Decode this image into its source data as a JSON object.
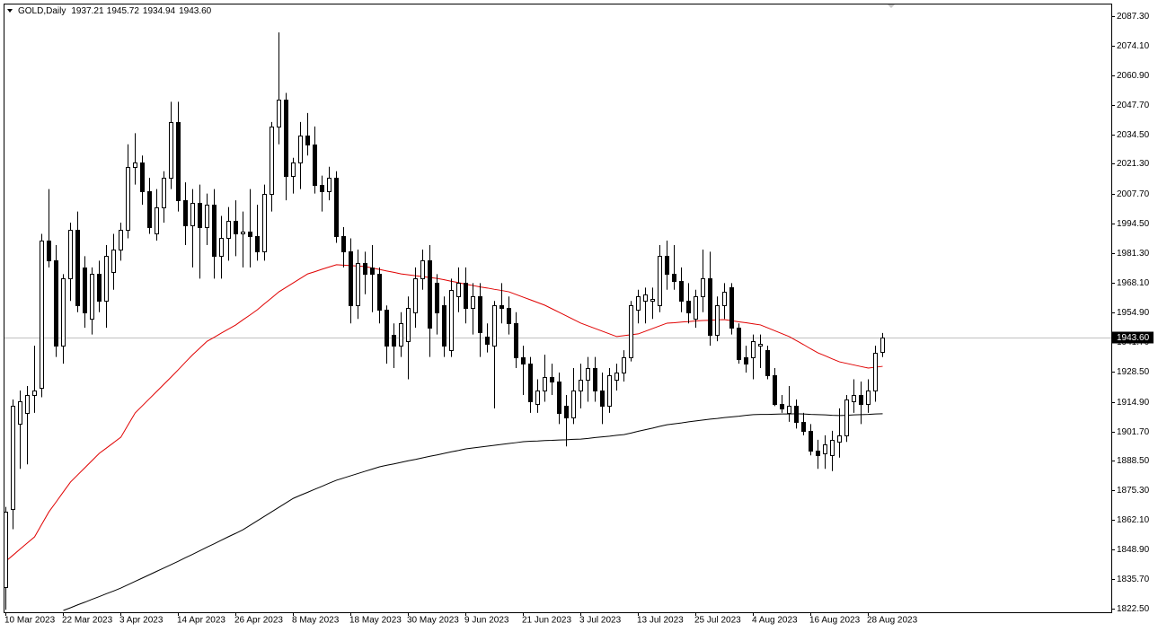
{
  "chart_data": {
    "type": "candlestick",
    "title": "GOLD,Daily",
    "ohlc_labels": [
      "1937.21",
      "1945.72",
      "1934.94",
      "1943.60"
    ],
    "categories": [
      "10 Mar 2023",
      null,
      null,
      null,
      null,
      null,
      null,
      null,
      "22 Mar 2023",
      null,
      null,
      null,
      null,
      null,
      null,
      null,
      "3 Apr 2023",
      null,
      null,
      null,
      null,
      null,
      null,
      null,
      "14 Apr 2023",
      null,
      null,
      null,
      null,
      null,
      null,
      null,
      "26 Apr 2023",
      null,
      null,
      null,
      null,
      null,
      null,
      null,
      "8 May 2023",
      null,
      null,
      null,
      null,
      null,
      null,
      null,
      "18 May 2023",
      null,
      null,
      null,
      null,
      null,
      null,
      null,
      "30 May 2023",
      null,
      null,
      null,
      null,
      null,
      null,
      null,
      "9 Jun 2023",
      null,
      null,
      null,
      null,
      null,
      null,
      null,
      "21 Jun 2023",
      null,
      null,
      null,
      null,
      null,
      null,
      null,
      "3 Jul 2023",
      null,
      null,
      null,
      null,
      null,
      null,
      null,
      "13 Jul 2023",
      null,
      null,
      null,
      null,
      null,
      null,
      null,
      "25 Jul 2023",
      null,
      null,
      null,
      null,
      null,
      null,
      null,
      "4 Aug 2023",
      null,
      null,
      null,
      null,
      null,
      null,
      null,
      "16 Aug 2023",
      null,
      null,
      null,
      null,
      null,
      null,
      null,
      "28 Aug 2023",
      null,
      null
    ],
    "open": [
      1832,
      1867,
      1905,
      1910,
      1918,
      1921,
      1987,
      1978,
      1940,
      1970,
      1992,
      1975,
      1952,
      1972,
      1960,
      1973,
      1983,
      1992,
      2020,
      2022,
      2009,
      1990,
      2002,
      2015,
      2040,
      2005,
      1994,
      2004,
      1993,
      2003,
      1980,
      1988,
      1996,
      1990,
      1991,
      1989,
      1982,
      2008,
      2038,
      2050,
      2016,
      2022,
      2034,
      2030,
      2012,
      2009,
      2015,
      1989,
      1982,
      1958,
      1977,
      1975,
      1972,
      1956,
      1945,
      1940,
      1942,
      1955,
      1970,
      1978,
      1968,
      1958,
      1938,
      1962,
      1968,
      1957,
      1962,
      1944,
      1940,
      1958,
      1957,
      1950,
      1935,
      1932,
      1914,
      1920,
      1926,
      1924,
      1913,
      1908,
      1920,
      1925,
      1930,
      1920,
      1913,
      1925,
      1928,
      1935,
      1956,
      1960,
      1960,
      1958,
      1980,
      1972,
      1969,
      1960,
      1952,
      1962,
      1970,
      1945,
      1958,
      1966,
      1948,
      1935,
      1935,
      1940,
      1938,
      1927,
      1914,
      1910,
      1913,
      1906,
      1902,
      1893,
      1892,
      1891,
      1897,
      1900,
      1915,
      1918,
      1914,
      1920,
      1937.21
    ],
    "high": [
      1868,
      1916,
      1920,
      1922,
      1940,
      1990,
      2010,
      1985,
      1972,
      1995,
      2000,
      1980,
      1975,
      1978,
      1985,
      1990,
      1995,
      2030,
      2035,
      2025,
      2015,
      2010,
      2018,
      2049,
      2049,
      2013,
      2010,
      2012,
      2008,
      2010,
      1998,
      2002,
      2005,
      2000,
      2010,
      2003,
      2012,
      2040,
      2080,
      2053,
      2024,
      2040,
      2044,
      2038,
      2016,
      2020,
      2018,
      1993,
      1988,
      1983,
      1982,
      1985,
      1975,
      1958,
      1950,
      1955,
      1962,
      1975,
      1983,
      1985,
      1972,
      1962,
      1970,
      1975,
      1975,
      1968,
      1968,
      1950,
      1960,
      1968,
      1962,
      1955,
      1940,
      1935,
      1925,
      1936,
      1932,
      1928,
      1918,
      1930,
      1932,
      1935,
      1935,
      1928,
      1930,
      1932,
      1938,
      1960,
      1965,
      1966,
      1966,
      1985,
      1987,
      1985,
      1975,
      1968,
      1965,
      1983,
      1982,
      1962,
      1968,
      1968,
      1950,
      1940,
      1945,
      1945,
      1940,
      1930,
      1918,
      1922,
      1916,
      1910,
      1905,
      1898,
      1900,
      1902,
      1912,
      1918,
      1925,
      1924,
      1925,
      1940,
      1945.72
    ],
    "low": [
      1822,
      1858,
      1885,
      1887,
      1910,
      1917,
      1975,
      1935,
      1932,
      1960,
      1955,
      1948,
      1945,
      1955,
      1948,
      1965,
      1978,
      1988,
      2012,
      2003,
      1990,
      1987,
      1995,
      2010,
      2000,
      1985,
      1975,
      1970,
      1985,
      1970,
      1970,
      1978,
      1980,
      1975,
      1975,
      1978,
      1978,
      2000,
      2030,
      2005,
      2008,
      2010,
      2025,
      2008,
      2000,
      2005,
      1986,
      1975,
      1950,
      1952,
      1963,
      1955,
      1950,
      1932,
      1930,
      1935,
      1925,
      1948,
      1965,
      1935,
      1945,
      1935,
      1935,
      1955,
      1950,
      1945,
      1935,
      1937,
      1912,
      1950,
      1945,
      1930,
      1918,
      1910,
      1910,
      1915,
      1918,
      1905,
      1895,
      1905,
      1912,
      1915,
      1915,
      1905,
      1910,
      1920,
      1924,
      1933,
      1950,
      1950,
      1952,
      1955,
      1965,
      1965,
      1955,
      1950,
      1948,
      1955,
      1940,
      1942,
      1952,
      1945,
      1932,
      1928,
      1925,
      1930,
      1925,
      1913,
      1910,
      1906,
      1903,
      1900,
      1891,
      1885,
      1885,
      1884,
      1890,
      1897,
      1910,
      1905,
      1910,
      1915,
      1934.94
    ],
    "close": [
      1866,
      1913,
      1915,
      1918,
      1920,
      1987,
      1978,
      1940,
      1970,
      1992,
      1958,
      1955,
      1972,
      1960,
      1980,
      1983,
      1992,
      2020,
      2022,
      2009,
      1993,
      2002,
      2015,
      2040,
      2005,
      1994,
      2004,
      1993,
      2003,
      1980,
      1988,
      1996,
      1990,
      1991,
      1989,
      1982,
      2008,
      2038,
      2050,
      2016,
      2022,
      2034,
      2030,
      2012,
      2009,
      2015,
      1989,
      1982,
      1958,
      1977,
      1972,
      1972,
      1956,
      1940,
      1940,
      1950,
      1957,
      1970,
      1978,
      1948,
      1955,
      1940,
      1965,
      1968,
      1957,
      1962,
      1946,
      1941,
      1958,
      1957,
      1950,
      1935,
      1932,
      1915,
      1920,
      1926,
      1924,
      1910,
      1908,
      1920,
      1925,
      1930,
      1920,
      1913,
      1927,
      1928,
      1935,
      1958,
      1962,
      1963,
      1961,
      1980,
      1972,
      1969,
      1960,
      1955,
      1962,
      1970,
      1945,
      1958,
      1964,
      1948,
      1934,
      1932,
      1942,
      1941,
      1927,
      1914,
      1912,
      1913,
      1906,
      1902,
      1893,
      1891,
      1896,
      1898,
      1900,
      1916,
      1918,
      1914,
      1920,
      1937,
      1943.6
    ],
    "bull_color": "#ffffff",
    "bear_color": "#000000",
    "moving_averages": [
      {
        "color": "#e00000",
        "values": [
          1843.7,
          1846.4,
          1849.2,
          1851.9,
          1854.6,
          1860.2,
          1865.8,
          1870.2,
          1874.7,
          1879.1,
          1882.3,
          1885.5,
          1888.7,
          1891.9,
          1894.3,
          1896.7,
          1899.1,
          1904.6,
          1910.0,
          1913.2,
          1916.4,
          1919.6,
          1922.8,
          1926.0,
          1929.3,
          1932.7,
          1936.0,
          1939.0,
          1942.0,
          1943.8,
          1945.7,
          1947.5,
          1949.3,
          1951.6,
          1953.8,
          1956.1,
          1958.8,
          1961.4,
          1964.1,
          1966.1,
          1968.1,
          1970.1,
          1972.1,
          1973.1,
          1974.2,
          1975.2,
          1976.2,
          1976.0,
          1975.8,
          1975.6,
          1975.4,
          1974.7,
          1974.1,
          1973.4,
          1972.8,
          1972.1,
          1971.7,
          1971.3,
          1970.9,
          1970.5,
          1970.1,
          1969.5,
          1968.8,
          1968.2,
          1967.5,
          1966.9,
          1966.3,
          1965.8,
          1965.2,
          1964.7,
          1964.1,
          1962.9,
          1961.7,
          1960.5,
          1959.3,
          1958.1,
          1956.5,
          1954.9,
          1953.3,
          1951.7,
          1950.1,
          1948.9,
          1947.7,
          1946.5,
          1945.3,
          1944.1,
          1944.5,
          1944.9,
          1945.3,
          1946.5,
          1947.7,
          1948.9,
          1950.1,
          1950.3,
          1950.6,
          1950.8,
          1951.1,
          1951.3,
          1951.4,
          1951.6,
          1951.7,
          1951.2,
          1950.7,
          1950.3,
          1949.8,
          1949.3,
          1948.0,
          1946.7,
          1945.4,
          1944.1,
          1942.3,
          1940.5,
          1938.6,
          1936.8,
          1935.5,
          1934.1,
          1932.8,
          1932.1,
          1931.4,
          1930.7,
          1930.0,
          1930.4,
          1930.8
        ]
      },
      {
        "color": "#000000",
        "values": [
          null,
          null,
          null,
          null,
          null,
          null,
          null,
          null,
          1821.7,
          1822.9,
          1824.2,
          1825.4,
          1826.7,
          1827.9,
          1829.2,
          1830.4,
          1831.7,
          1833.2,
          1834.7,
          1836.2,
          1837.7,
          1839.2,
          1840.7,
          1842.2,
          1843.7,
          1845.3,
          1846.8,
          1848.4,
          1850.0,
          1851.5,
          1853.1,
          1854.7,
          1856.2,
          1857.8,
          1859.8,
          1861.8,
          1863.8,
          1865.8,
          1867.8,
          1869.8,
          1871.8,
          1873.2,
          1874.5,
          1875.9,
          1877.2,
          1878.6,
          1879.9,
          1880.9,
          1881.9,
          1882.9,
          1883.9,
          1884.9,
          1885.9,
          1886.6,
          1887.2,
          1887.9,
          1888.6,
          1889.2,
          1889.9,
          1890.6,
          1891.2,
          1891.9,
          1892.6,
          1893.2,
          1893.9,
          1894.3,
          1894.7,
          1895.1,
          1895.5,
          1895.9,
          1896.3,
          1896.7,
          1897.1,
          1897.3,
          1897.4,
          1897.6,
          1897.7,
          1897.9,
          1898.0,
          1898.2,
          1898.3,
          1898.6,
          1899.0,
          1899.3,
          1899.6,
          1900.0,
          1900.3,
          1901.0,
          1901.8,
          1902.5,
          1903.2,
          1904.0,
          1904.7,
          1905.1,
          1905.5,
          1906.0,
          1906.4,
          1906.8,
          1907.2,
          1907.5,
          1907.9,
          1908.2,
          1908.5,
          1908.9,
          1909.2,
          1909.3,
          1909.3,
          1909.4,
          1909.5,
          1909.5,
          1909.6,
          1909.5,
          1909.3,
          1909.2,
          1909.1,
          1908.9,
          1908.8,
          1908.9,
          1909.1,
          1909.2,
          1909.3,
          1909.5,
          1909.6
        ]
      }
    ],
    "last_price": {
      "value": 1943.6,
      "label": "1943.60",
      "color": "#c0c0c0"
    },
    "ylim": [
      1820.9,
      2092.9
    ],
    "yticks": [
      {
        "value": 2087.3,
        "label": "2087.30"
      },
      {
        "value": 2074.1,
        "label": "2074.10"
      },
      {
        "value": 2060.9,
        "label": "2060.90"
      },
      {
        "value": 2047.7,
        "label": "2047.70"
      },
      {
        "value": 2034.5,
        "label": "2034.50"
      },
      {
        "value": 2021.3,
        "label": "2021.30"
      },
      {
        "value": 2007.7,
        "label": "2007.70"
      },
      {
        "value": 1994.5,
        "label": "1994.50"
      },
      {
        "value": 1981.3,
        "label": "1981.30"
      },
      {
        "value": 1968.1,
        "label": "1968.10"
      },
      {
        "value": 1954.9,
        "label": "1954.90"
      },
      {
        "value": 1941.7,
        "label": "1941.70"
      },
      {
        "value": 1928.5,
        "label": "1928.50"
      },
      {
        "value": 1914.9,
        "label": "1914.90"
      },
      {
        "value": 1901.7,
        "label": "1901.70"
      },
      {
        "value": 1888.5,
        "label": "1888.50"
      },
      {
        "value": 1875.3,
        "label": "1875.30"
      },
      {
        "value": 1862.1,
        "label": "1862.10"
      },
      {
        "value": 1848.9,
        "label": "1848.90"
      },
      {
        "value": 1835.7,
        "label": "1835.70"
      },
      {
        "value": 1822.5,
        "label": "1822.50"
      }
    ],
    "grid": false
  }
}
